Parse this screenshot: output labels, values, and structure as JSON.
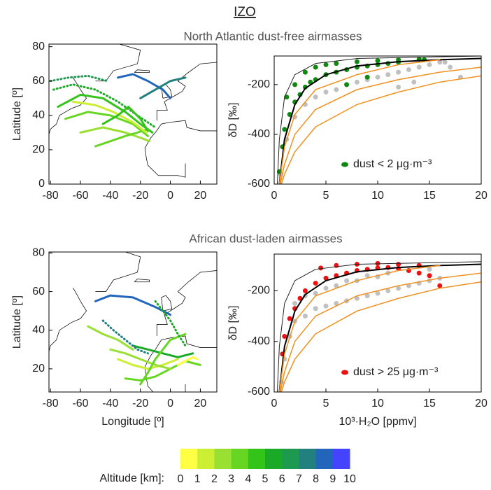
{
  "figure": {
    "title": "IZO",
    "row_titles": [
      "North Atlantic dust-free airmasses",
      "African dust-laden airmasses"
    ]
  },
  "colorbar": {
    "label": "Altitude [km]:",
    "colors": [
      "#ffff44",
      "#ccee33",
      "#99e033",
      "#66d622",
      "#33c41a",
      "#1aaa28",
      "#1e9950",
      "#22807f",
      "#2266bb",
      "#4444ff"
    ],
    "ticks": [
      0,
      1,
      2,
      3,
      4,
      5,
      6,
      7,
      8,
      9,
      10
    ]
  },
  "chart_data": [
    {
      "type": "map",
      "ylabel": "Latitude [º]",
      "xlim": [
        -81,
        31
      ],
      "ylim": [
        0,
        81.5
      ],
      "xticks": [
        -80,
        -60,
        -40,
        -20,
        0,
        20
      ],
      "yticks": [
        0,
        20,
        40,
        60,
        80
      ],
      "series": [
        {
          "color": "#33c41a",
          "x": [
            -75,
            -60,
            -45,
            -30,
            -20,
            -12
          ],
          "y": [
            45,
            52,
            50,
            42,
            35,
            30
          ]
        },
        {
          "color": "#66d622",
          "x": [
            -70,
            -55,
            -40,
            -25,
            -15
          ],
          "y": [
            38,
            42,
            40,
            35,
            28
          ]
        },
        {
          "color": "#1aaa28",
          "style": "dotted",
          "x": [
            -78,
            -65,
            -50,
            -35,
            -22,
            -10
          ],
          "y": [
            55,
            58,
            55,
            48,
            40,
            33
          ]
        },
        {
          "color": "#99e033",
          "x": [
            -60,
            -45,
            -30,
            -20,
            -14
          ],
          "y": [
            30,
            33,
            30,
            27,
            25
          ]
        },
        {
          "color": "#2266bb",
          "x": [
            -35,
            -25,
            -15,
            -5,
            0
          ],
          "y": [
            62,
            64,
            60,
            55,
            50
          ]
        },
        {
          "color": "#66d622",
          "x": [
            -50,
            -40,
            -30,
            -22,
            -15
          ],
          "y": [
            22,
            25,
            28,
            30,
            32
          ]
        },
        {
          "color": "#1e9950",
          "style": "dotted",
          "x": [
            -80,
            -68,
            -55,
            -42
          ],
          "y": [
            60,
            62,
            63,
            60
          ]
        },
        {
          "color": "#ccee33",
          "x": [
            -65,
            -50,
            -38,
            -25,
            -16
          ],
          "y": [
            48,
            46,
            42,
            36,
            30
          ]
        },
        {
          "color": "#22807f",
          "x": [
            -20,
            -10,
            0,
            10
          ],
          "y": [
            50,
            55,
            60,
            62
          ]
        },
        {
          "color": "#33c41a",
          "x": [
            -45,
            -35,
            -28,
            -20,
            -15
          ],
          "y": [
            35,
            40,
            45,
            38,
            31
          ]
        }
      ]
    },
    {
      "type": "scatter",
      "ylabel": "δD [‰]",
      "xlim": [
        0,
        20
      ],
      "ylim": [
        -600,
        -85
      ],
      "xticks": [
        0,
        5,
        10,
        15,
        20
      ],
      "yticks": [
        -600,
        -400,
        -200
      ],
      "series": [
        {
          "kind": "points",
          "color": "#c0c0c0",
          "x": [
            0.6,
            1.2,
            2,
            3,
            4,
            5,
            6,
            7,
            8,
            9,
            10,
            11,
            12,
            13,
            14,
            15,
            16,
            17,
            18,
            13.5,
            12,
            16.5
          ],
          "y": [
            -560,
            -420,
            -330,
            -280,
            -250,
            -230,
            -220,
            -200,
            -190,
            -180,
            -170,
            -160,
            -150,
            -140,
            -130,
            -120,
            -110,
            -130,
            -170,
            -190,
            -210,
            -110
          ]
        },
        {
          "kind": "points",
          "name": "dust < 2 μg·m⁻³",
          "color": "#118811",
          "x": [
            0.5,
            0.8,
            1,
            1.5,
            2,
            2.5,
            3,
            3.5,
            4,
            5,
            6,
            7,
            8,
            9,
            10,
            11,
            12,
            1.2,
            2,
            3,
            4,
            5,
            6,
            8,
            10,
            12,
            14,
            14.5,
            9,
            7
          ],
          "y": [
            -550,
            -450,
            -380,
            -320,
            -270,
            -240,
            -210,
            -190,
            -180,
            -160,
            -150,
            -140,
            -130,
            -125,
            -120,
            -115,
            -110,
            -250,
            -200,
            -150,
            -130,
            -120,
            -115,
            -108,
            -104,
            -100,
            -98,
            -100,
            -170,
            -200
          ]
        },
        {
          "kind": "line",
          "color": "#222222",
          "width": 1,
          "x": [
            0.3,
            0.5,
            1,
            2,
            4,
            8,
            20
          ],
          "y": [
            -600,
            -420,
            -250,
            -160,
            -115,
            -95,
            -85
          ]
        },
        {
          "kind": "line",
          "color": "#000000",
          "width": 2,
          "x": [
            0.5,
            1,
            2,
            3,
            5,
            8,
            12,
            16,
            20
          ],
          "y": [
            -600,
            -420,
            -280,
            -215,
            -160,
            -125,
            -108,
            -100,
            -95
          ]
        },
        {
          "kind": "line",
          "color": "#f0901e",
          "width": 1.5,
          "x": [
            0.5,
            1,
            2,
            4,
            8,
            12,
            16
          ],
          "y": [
            -600,
            -450,
            -320,
            -220,
            -160,
            -120,
            -100
          ]
        },
        {
          "kind": "line",
          "color": "#f0901e",
          "width": 1.5,
          "x": [
            0.6,
            1,
            2,
            4,
            8,
            12,
            16,
            20
          ],
          "y": [
            -600,
            -520,
            -400,
            -300,
            -220,
            -180,
            -150,
            -130
          ]
        },
        {
          "kind": "line",
          "color": "#f0901e",
          "width": 1.5,
          "x": [
            0.7,
            1,
            2,
            4,
            8,
            12,
            16,
            20
          ],
          "y": [
            -600,
            -560,
            -470,
            -370,
            -280,
            -230,
            -190,
            -165
          ]
        }
      ]
    },
    {
      "type": "map",
      "xlabel": "Longitude [º]",
      "ylabel": "Latitude [º]",
      "xlim": [
        -81,
        31
      ],
      "ylim": [
        8,
        80.5
      ],
      "xticks": [
        -80,
        -60,
        -40,
        -20,
        0,
        20
      ],
      "yticks": [
        20,
        40,
        60,
        80
      ],
      "series": [
        {
          "color": "#ccee33",
          "x": [
            -35,
            -25,
            -15,
            -5,
            5
          ],
          "y": [
            25,
            22,
            20,
            22,
            25
          ]
        },
        {
          "color": "#66d622",
          "x": [
            -30,
            -20,
            -10,
            0,
            10,
            20
          ],
          "y": [
            15,
            14,
            16,
            20,
            24,
            22
          ]
        },
        {
          "color": "#99e033",
          "x": [
            -40,
            -30,
            -20,
            -10,
            0
          ],
          "y": [
            30,
            28,
            25,
            22,
            20
          ]
        },
        {
          "color": "#1aaa28",
          "x": [
            -25,
            -15,
            -5,
            5,
            15
          ],
          "y": [
            32,
            30,
            28,
            26,
            28
          ]
        },
        {
          "color": "#2266bb",
          "x": [
            -50,
            -40,
            -25,
            -10,
            0
          ],
          "y": [
            55,
            58,
            57,
            52,
            48
          ]
        },
        {
          "color": "#ffff44",
          "x": [
            5,
            10,
            15,
            18
          ],
          "y": [
            22,
            24,
            26,
            25
          ]
        },
        {
          "color": "#22807f",
          "style": "dotted",
          "x": [
            -45,
            -38,
            -30,
            -22,
            -15
          ],
          "y": [
            45,
            40,
            35,
            30,
            28
          ]
        },
        {
          "color": "#66d622",
          "x": [
            -20,
            -15,
            -10,
            -5,
            0,
            10
          ],
          "y": [
            12,
            18,
            25,
            30,
            35,
            38
          ]
        },
        {
          "color": "#1aaa28",
          "style": "dotted",
          "x": [
            -10,
            -5,
            0,
            5,
            10
          ],
          "y": [
            55,
            50,
            45,
            38,
            32
          ]
        },
        {
          "color": "#99e033",
          "x": [
            -55,
            -45,
            -35,
            -25
          ],
          "y": [
            42,
            38,
            35,
            30
          ]
        }
      ]
    },
    {
      "type": "scatter",
      "xlabel": "10³·H₂O [ppmv]",
      "ylabel": "δD [‰]",
      "xlim": [
        0,
        20
      ],
      "ylim": [
        -600,
        -55
      ],
      "xticks": [
        0,
        5,
        10,
        15,
        20
      ],
      "yticks": [
        -600,
        -400,
        -200
      ],
      "series": [
        {
          "kind": "points",
          "color": "#c0c0c0",
          "x": [
            0.7,
            1,
            1.5,
            2,
            3,
            4,
            5,
            6,
            7,
            8,
            9,
            10,
            11,
            12,
            13,
            14,
            15,
            16,
            3,
            5,
            7,
            9,
            11,
            13,
            15,
            2,
            4,
            6,
            8,
            10
          ],
          "y": [
            -560,
            -470,
            -380,
            -320,
            -300,
            -270,
            -260,
            -250,
            -240,
            -230,
            -220,
            -210,
            -200,
            -190,
            -180,
            -170,
            -160,
            -150,
            -220,
            -190,
            -160,
            -140,
            -130,
            -120,
            -115,
            -250,
            -210,
            -180,
            -160,
            -145
          ]
        },
        {
          "kind": "points",
          "name": "dust > 25 μg·m⁻³",
          "color": "#ee1111",
          "x": [
            0.8,
            1,
            1.5,
            2,
            2.5,
            3,
            4,
            5,
            6,
            7,
            8,
            9,
            10,
            11,
            12,
            13,
            14,
            15,
            16,
            4.5,
            6,
            8,
            10,
            12,
            14
          ],
          "y": [
            -450,
            -380,
            -310,
            -270,
            -230,
            -200,
            -170,
            -150,
            -140,
            -130,
            -120,
            -115,
            -110,
            -108,
            -112,
            -120,
            -130,
            -140,
            -180,
            -110,
            -100,
            -95,
            -92,
            -95,
            -100
          ]
        },
        {
          "kind": "line",
          "color": "#222222",
          "width": 1,
          "x": [
            0.3,
            0.5,
            1,
            2,
            4,
            8,
            20
          ],
          "y": [
            -600,
            -420,
            -250,
            -160,
            -115,
            -95,
            -85
          ]
        },
        {
          "kind": "line",
          "color": "#000000",
          "width": 2,
          "x": [
            0.5,
            1,
            2,
            3,
            5,
            8,
            12,
            16,
            20
          ],
          "y": [
            -600,
            -420,
            -280,
            -215,
            -160,
            -125,
            -108,
            -100,
            -95
          ]
        },
        {
          "kind": "line",
          "color": "#f0901e",
          "width": 1.5,
          "x": [
            0.5,
            1,
            2,
            4,
            8,
            12,
            16
          ],
          "y": [
            -600,
            -450,
            -320,
            -220,
            -160,
            -120,
            -100
          ]
        },
        {
          "kind": "line",
          "color": "#f0901e",
          "width": 1.5,
          "x": [
            0.6,
            1,
            2,
            4,
            8,
            12,
            16,
            20
          ],
          "y": [
            -600,
            -520,
            -400,
            -300,
            -220,
            -180,
            -150,
            -130
          ]
        },
        {
          "kind": "line",
          "color": "#f0901e",
          "width": 1.5,
          "x": [
            0.7,
            1,
            2,
            4,
            8,
            12,
            16,
            20
          ],
          "y": [
            -600,
            -560,
            -470,
            -370,
            -280,
            -230,
            -190,
            -165
          ]
        }
      ]
    }
  ]
}
